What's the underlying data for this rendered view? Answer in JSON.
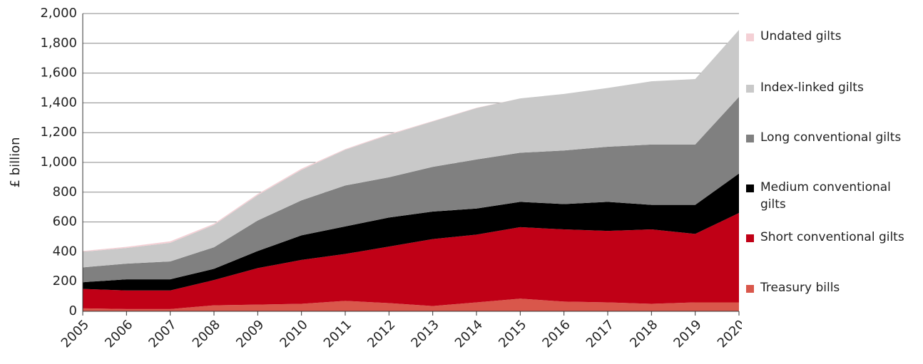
{
  "chart_data": {
    "type": "stacked_area",
    "y_axis_label": "£ billion",
    "categories": [
      "2005",
      "2006",
      "2007",
      "2008",
      "2009",
      "2010",
      "2011",
      "2012",
      "2013",
      "2014",
      "2015",
      "2016",
      "2017",
      "2018",
      "2019",
      "2020"
    ],
    "series": [
      {
        "name": "Treasury bills",
        "color": "#d9574b",
        "values": [
          20,
          15,
          15,
          40,
          45,
          50,
          70,
          55,
          35,
          60,
          85,
          65,
          60,
          50,
          60,
          60
        ]
      },
      {
        "name": "Short conventional gilts",
        "color": "#c00016",
        "values": [
          130,
          125,
          125,
          170,
          245,
          295,
          315,
          380,
          450,
          455,
          480,
          485,
          480,
          500,
          460,
          600
        ]
      },
      {
        "name": "Medium conventional gilts",
        "color": "#000000",
        "values": [
          45,
          75,
          75,
          75,
          115,
          165,
          185,
          195,
          185,
          175,
          170,
          170,
          195,
          165,
          195,
          265
        ]
      },
      {
        "name": "Long conventional gilts",
        "color": "#808080",
        "values": [
          100,
          105,
          120,
          145,
          205,
          235,
          275,
          270,
          300,
          330,
          330,
          360,
          370,
          405,
          405,
          515
        ]
      },
      {
        "name": "Index-linked gilts",
        "color": "#c9c9c9",
        "values": [
          105,
          105,
          125,
          150,
          170,
          205,
          240,
          285,
          305,
          345,
          365,
          380,
          395,
          425,
          440,
          450
        ]
      },
      {
        "name": "Undated gilts",
        "color": "#f4d0d5",
        "values": [
          5,
          8,
          10,
          8,
          8,
          8,
          5,
          5,
          3,
          2,
          0,
          0,
          0,
          0,
          0,
          0
        ]
      }
    ],
    "ylim": [
      0,
      2000
    ],
    "yticks": [
      0,
      200,
      400,
      600,
      800,
      {
        "value": 1000,
        "label": "1,000"
      },
      {
        "value": 1200,
        "label": "1,200"
      },
      {
        "value": 1400,
        "label": "1,400"
      },
      {
        "value": 1600,
        "label": "1,600"
      },
      {
        "value": 1800,
        "label": "1,800"
      },
      {
        "value": 2000,
        "label": "2,000"
      }
    ],
    "grid": true,
    "legend": "right"
  }
}
